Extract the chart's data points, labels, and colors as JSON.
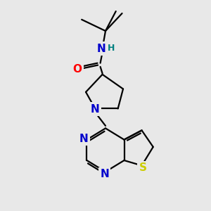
{
  "background_color": "#e8e8e8",
  "bond_color": "#000000",
  "atom_colors": {
    "N": "#0000cc",
    "O": "#ff0000",
    "S": "#cccc00",
    "C": "#000000",
    "H": "#008080"
  },
  "figsize": [
    3.0,
    3.0
  ],
  "dpi": 100,
  "lw": 1.6
}
